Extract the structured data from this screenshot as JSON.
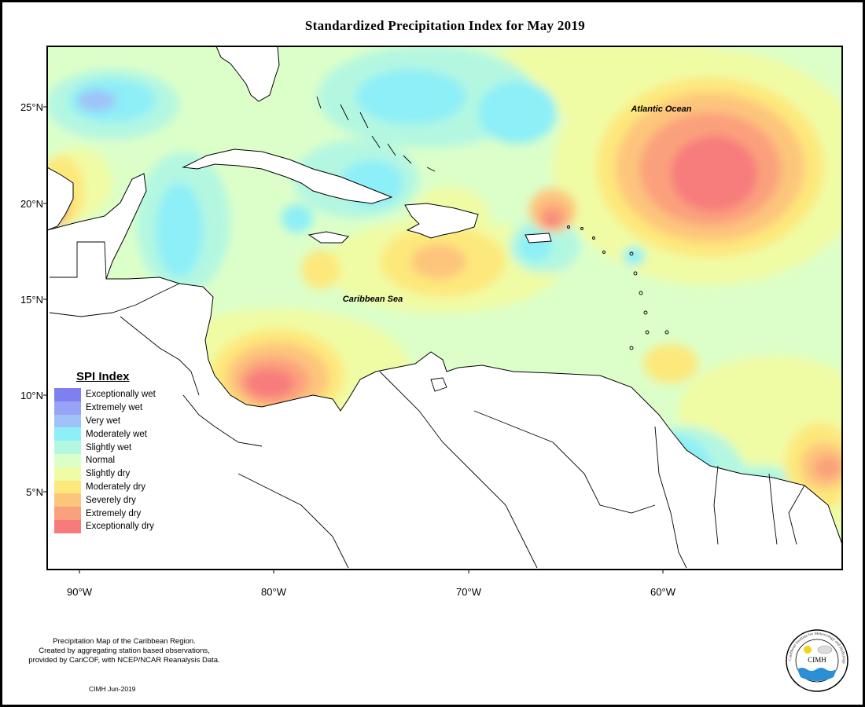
{
  "title": "Standardized Precipitation Index for May 2019",
  "axes": {
    "lat_labels": [
      "25°N",
      "20°N",
      "15°N",
      "10°N",
      "5°N"
    ],
    "lon_labels": [
      "90°W",
      "80°W",
      "70°W",
      "60°W"
    ]
  },
  "place_labels": {
    "atlantic": "Atlantic Ocean",
    "caribbean": "Caribbean Sea"
  },
  "legend": {
    "title": "SPI Index",
    "items": [
      {
        "label": "Exceptionally wet",
        "color": "#7f7ff2"
      },
      {
        "label": "Extremely wet",
        "color": "#99a3f5"
      },
      {
        "label": "Very wet",
        "color": "#9fc3f8"
      },
      {
        "label": "Moderately wet",
        "color": "#8deff7"
      },
      {
        "label": "Slightly wet",
        "color": "#b4f7e1"
      },
      {
        "label": "Normal",
        "color": "#dcffc9"
      },
      {
        "label": "Slightly dry",
        "color": "#f0fca4"
      },
      {
        "label": "Moderately dry",
        "color": "#fde87c"
      },
      {
        "label": "Severely dry",
        "color": "#fdc57b"
      },
      {
        "label": "Extremely dry",
        "color": "#fba07c"
      },
      {
        "label": "Exceptionally dry",
        "color": "#f77b7c"
      }
    ]
  },
  "credits": {
    "line1": "Precipitation Map of the Caribbean Region.",
    "line2": "Created by aggregating station based observations,",
    "line3": "provided by CariCOF, with NCEP/NCAR Reanalysis Data.",
    "stamp": "CIMH Jun-2019"
  },
  "logo": {
    "center_text": "CIMH",
    "ring_text": "Caribbean Institute for Meteorology and Hydrology"
  }
}
